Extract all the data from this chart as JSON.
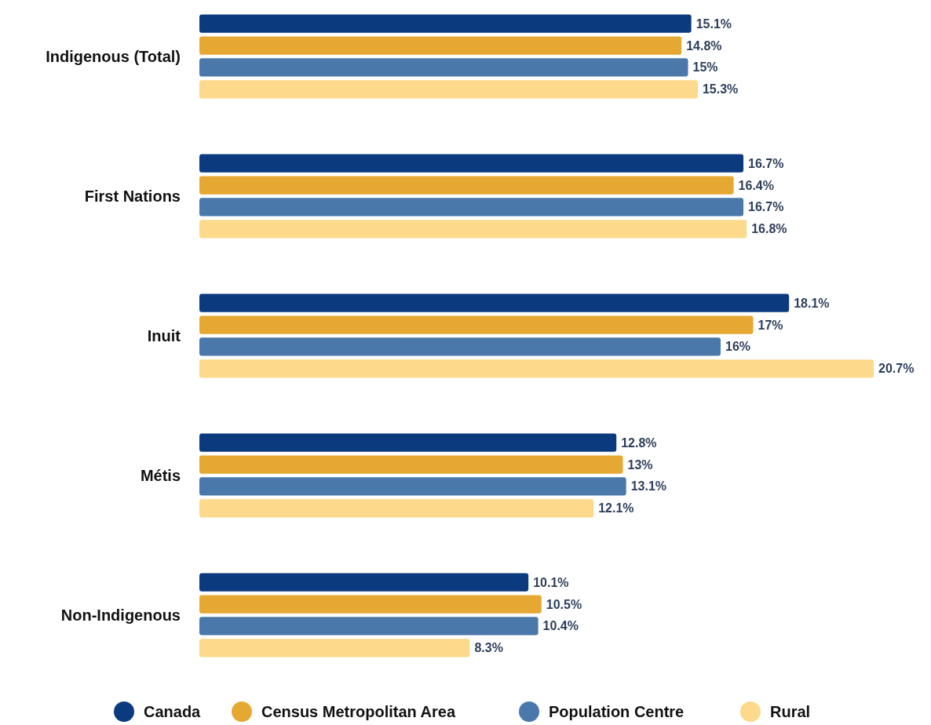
{
  "chart_data": {
    "type": "bar",
    "orientation": "horizontal",
    "categories": [
      "Indigenous (Total)",
      "First Nations",
      "Inuit",
      "Métis",
      "Non-Indigenous"
    ],
    "series": [
      {
        "name": "Canada",
        "color": "#0b3a7e",
        "values": [
          15.1,
          16.7,
          18.1,
          12.8,
          10.1
        ],
        "value_labels": [
          "15.1%",
          "16.7%",
          "18.1%",
          "12.8%",
          "10.1%"
        ]
      },
      {
        "name": "Census Metropolitan Area",
        "color": "#e5a832",
        "values": [
          14.8,
          16.4,
          17,
          13,
          10.5
        ],
        "value_labels": [
          "14.8%",
          "16.4%",
          "17%",
          "13%",
          "10.5%"
        ]
      },
      {
        "name": "Population Centre",
        "color": "#4a78ab",
        "values": [
          15,
          16.7,
          16,
          13.1,
          10.4
        ],
        "value_labels": [
          "15%",
          "16.7%",
          "16%",
          "13.1%",
          "10.4%"
        ]
      },
      {
        "name": "Rural",
        "color": "#fcd98b",
        "values": [
          15.3,
          16.8,
          20.7,
          12.1,
          8.3
        ],
        "value_labels": [
          "15.3%",
          "16.8%",
          "20.7%",
          "12.1%",
          "8.3%"
        ]
      }
    ],
    "tick_labels": "y",
    "legend": "bottom"
  }
}
